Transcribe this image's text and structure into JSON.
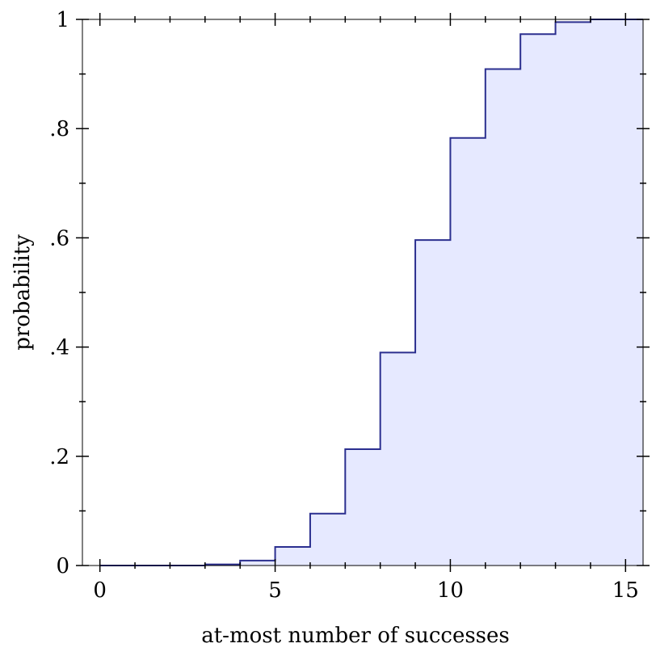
{
  "chart_data": {
    "type": "area",
    "step": true,
    "xlabel": "at-most number of successes",
    "ylabel": "probability",
    "xlim": [
      -0.5,
      15.5
    ],
    "ylim": [
      0,
      1
    ],
    "x_ticks": [
      0,
      5,
      10,
      15
    ],
    "x_tick_labels": [
      "0",
      "5",
      "10",
      "15"
    ],
    "y_ticks": [
      0,
      0.2,
      0.4,
      0.6,
      0.8,
      1
    ],
    "y_tick_labels": [
      "0",
      ".2",
      ".4",
      ".6",
      ".8",
      "1"
    ],
    "grid": false,
    "series": [
      {
        "x": [
          0,
          1,
          2,
          3,
          4,
          5,
          6,
          7,
          8,
          9,
          10,
          11,
          12,
          13,
          14,
          15
        ],
        "values": [
          0.0,
          0.0,
          0.0,
          0.002,
          0.009,
          0.034,
          0.095,
          0.213,
          0.39,
          0.596,
          0.783,
          0.909,
          0.973,
          0.995,
          1.0,
          1.0
        ]
      }
    ],
    "colors": {
      "line": "#2b2f8f",
      "fill": "#e6e9ff",
      "axis": "#000000"
    }
  }
}
